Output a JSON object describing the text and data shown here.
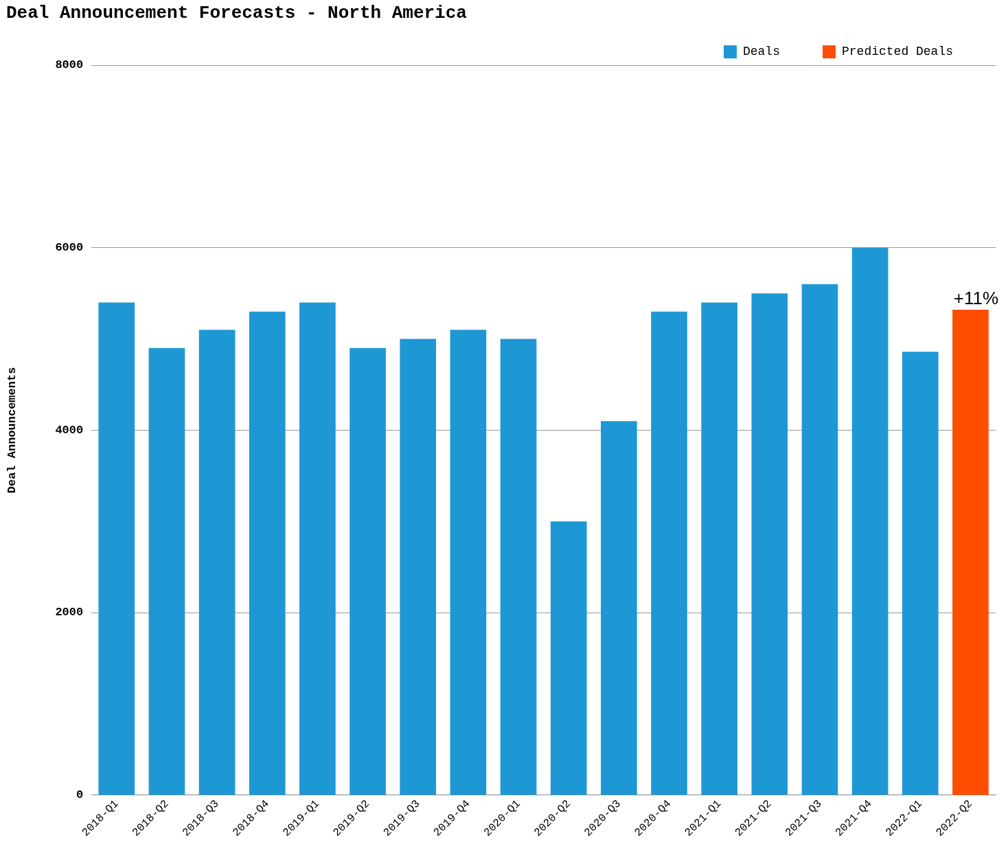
{
  "chart_data": {
    "type": "bar",
    "title": "Deal Announcement Forecasts - North America",
    "ylabel": "Deal Announcements",
    "categories": [
      "2018-Q1",
      "2018-Q2",
      "2018-Q3",
      "2018-Q4",
      "2019-Q1",
      "2019-Q2",
      "2019-Q3",
      "2019-Q4",
      "2020-Q1",
      "2020-Q2",
      "2020-Q3",
      "2020-Q4",
      "2021-Q1",
      "2021-Q2",
      "2021-Q3",
      "2021-Q4",
      "2022-Q1",
      "2022-Q2"
    ],
    "series": [
      {
        "name": "Deals",
        "color": "#1e98d5",
        "values": [
          5400,
          4900,
          5100,
          5300,
          5400,
          4900,
          5000,
          5100,
          5000,
          3000,
          4100,
          5300,
          5400,
          5500,
          5600,
          6000,
          4860,
          null
        ]
      },
      {
        "name": "Predicted Deals",
        "color": "#ff4e02",
        "values": [
          null,
          null,
          null,
          null,
          null,
          null,
          null,
          null,
          null,
          null,
          null,
          null,
          null,
          null,
          null,
          null,
          null,
          5320
        ]
      }
    ],
    "ylim": [
      0,
      8000
    ],
    "yticks": [
      0,
      2000,
      4000,
      6000,
      8000
    ],
    "grid": "y",
    "legend": "top right",
    "annotations": [
      {
        "text": "+11%",
        "x": "2022-Q2",
        "y": 5320
      }
    ]
  }
}
